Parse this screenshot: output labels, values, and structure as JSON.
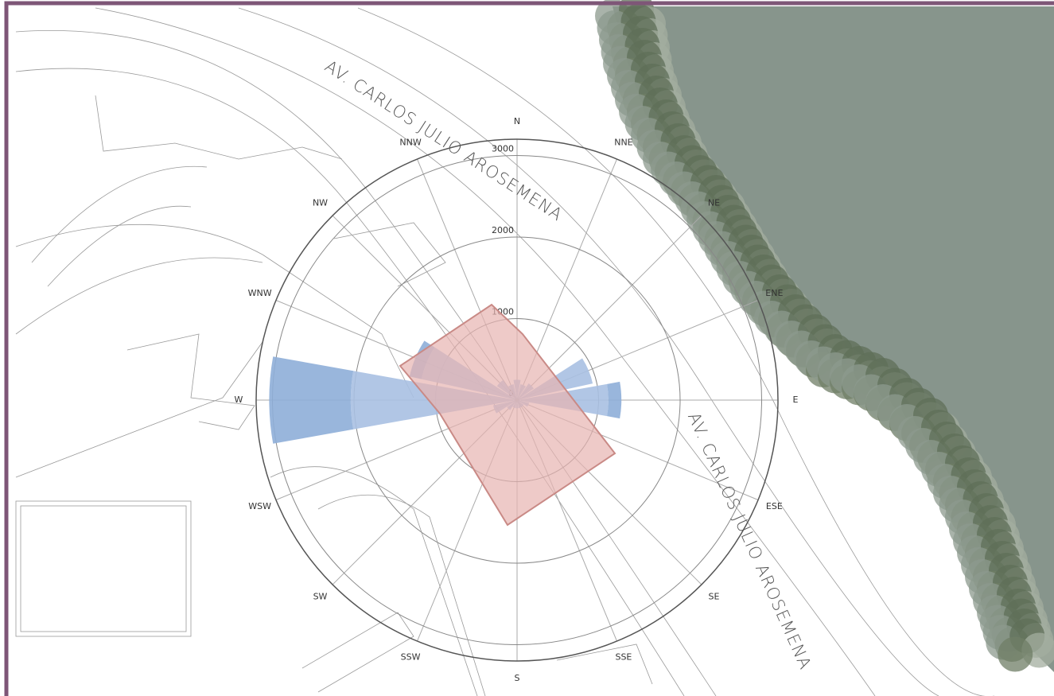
{
  "map": {
    "street_labels": [
      "AV. CARLOS JULIO AROSEMENA",
      "AV. CARLOS JULIO AROSEMENA"
    ]
  },
  "chart_data": {
    "type": "wind-rose",
    "categories": [
      "N",
      "NNE",
      "NE",
      "ENE",
      "E",
      "ESE",
      "SE",
      "SSE",
      "S",
      "SSW",
      "SW",
      "WSW",
      "W",
      "WNW",
      "NW",
      "NNW"
    ],
    "series": [
      {
        "color": "#a9c0e2",
        "values": [
          250,
          200,
          250,
          950,
          1120,
          150,
          100,
          100,
          100,
          100,
          150,
          300,
          2040,
          1200,
          300,
          200
        ]
      },
      {
        "color": "#8eaed8",
        "values": [
          0,
          0,
          0,
          0,
          160,
          0,
          0,
          0,
          0,
          0,
          0,
          0,
          1000,
          150,
          0,
          0
        ]
      }
    ],
    "rlim": [
      0,
      3200
    ],
    "rticks": [
      0,
      1000,
      2000,
      3000
    ],
    "grid": true
  }
}
